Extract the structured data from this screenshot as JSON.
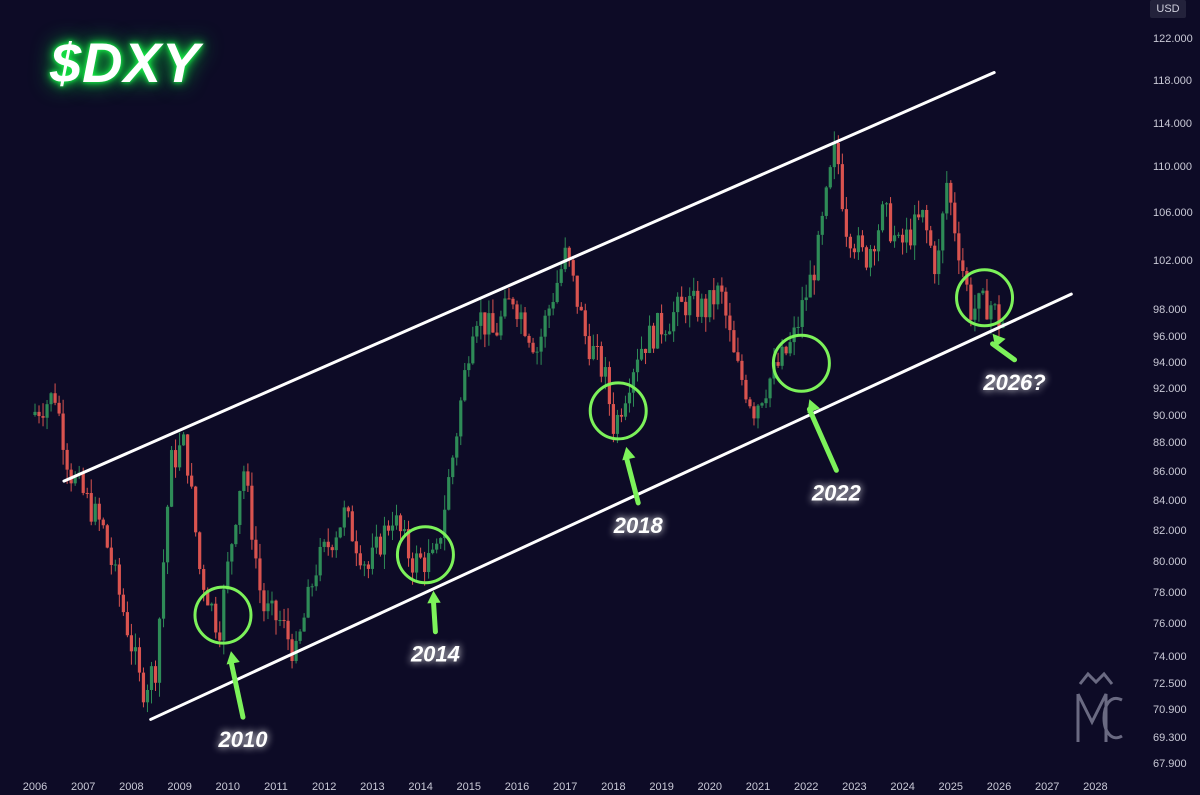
{
  "chart_data": {
    "type": "candlestick",
    "title": "$DXY",
    "currency": "USD",
    "y_ticks": [
      "122.000",
      "118.000",
      "114.000",
      "110.000",
      "106.000",
      "102.000",
      "98.000",
      "96.000",
      "94.000",
      "92.000",
      "90.000",
      "88.000",
      "86.000",
      "84.000",
      "82.000",
      "80.000",
      "78.000",
      "76.000",
      "74.000",
      "72.500",
      "70.900",
      "69.300",
      "67.900"
    ],
    "x_ticks": [
      "2006",
      "2007",
      "2008",
      "2009",
      "2010",
      "2011",
      "2012",
      "2013",
      "2014",
      "2015",
      "2016",
      "2017",
      "2018",
      "2019",
      "2020",
      "2021",
      "2022",
      "2023",
      "2024",
      "2025",
      "2026",
      "2027",
      "2028"
    ],
    "ylim": [
      67.9,
      122
    ],
    "scale": "log",
    "up_color": "#2e8b57",
    "down_color": "#d9534f",
    "trend_color": "#ffffff",
    "highlight_color": "#7cf25a",
    "channel": {
      "upper": {
        "from": {
          "year": 2006.6,
          "value": 85.3
        },
        "to": {
          "year": 2025.9,
          "value": 118.7
        }
      },
      "lower": {
        "from": {
          "year": 2008.4,
          "value": 70.3
        },
        "to": {
          "year": 2027.5,
          "value": 99.2
        }
      }
    },
    "annotations": [
      {
        "label": "2010",
        "year": 2009.9,
        "value": 76.5
      },
      {
        "label": "2014",
        "year": 2014.1,
        "value": 80.4
      },
      {
        "label": "2018",
        "year": 2018.1,
        "value": 90.3
      },
      {
        "label": "2022",
        "year": 2021.9,
        "value": 93.9
      },
      {
        "label": "2026?",
        "year": 2025.7,
        "value": 98.9
      }
    ],
    "series": [
      {
        "year": 2006.0,
        "value": 90.0
      },
      {
        "year": 2006.5,
        "value": 91.5
      },
      {
        "year": 2006.8,
        "value": 86.0
      },
      {
        "year": 2007.5,
        "value": 82.0
      },
      {
        "year": 2007.9,
        "value": 77.0
      },
      {
        "year": 2008.3,
        "value": 72.0
      },
      {
        "year": 2008.6,
        "value": 73.5
      },
      {
        "year": 2008.9,
        "value": 86.5
      },
      {
        "year": 2009.2,
        "value": 88.0
      },
      {
        "year": 2009.5,
        "value": 79.5
      },
      {
        "year": 2009.9,
        "value": 75.5
      },
      {
        "year": 2010.4,
        "value": 86.5
      },
      {
        "year": 2010.8,
        "value": 77.0
      },
      {
        "year": 2011.2,
        "value": 76.0
      },
      {
        "year": 2011.5,
        "value": 74.0
      },
      {
        "year": 2011.9,
        "value": 79.5
      },
      {
        "year": 2012.5,
        "value": 83.0
      },
      {
        "year": 2013.0,
        "value": 79.5
      },
      {
        "year": 2013.5,
        "value": 83.0
      },
      {
        "year": 2013.9,
        "value": 80.0
      },
      {
        "year": 2014.4,
        "value": 80.0
      },
      {
        "year": 2014.8,
        "value": 88.0
      },
      {
        "year": 2015.2,
        "value": 98.0
      },
      {
        "year": 2015.6,
        "value": 96.0
      },
      {
        "year": 2016.0,
        "value": 99.0
      },
      {
        "year": 2016.5,
        "value": 95.0
      },
      {
        "year": 2016.9,
        "value": 100.0
      },
      {
        "year": 2017.1,
        "value": 102.5
      },
      {
        "year": 2017.5,
        "value": 96.0
      },
      {
        "year": 2017.9,
        "value": 93.0
      },
      {
        "year": 2018.1,
        "value": 89.0
      },
      {
        "year": 2018.6,
        "value": 95.0
      },
      {
        "year": 2019.0,
        "value": 96.5
      },
      {
        "year": 2019.6,
        "value": 98.5
      },
      {
        "year": 2020.0,
        "value": 98.0
      },
      {
        "year": 2020.3,
        "value": 99.5
      },
      {
        "year": 2020.6,
        "value": 94.0
      },
      {
        "year": 2021.0,
        "value": 90.5
      },
      {
        "year": 2021.3,
        "value": 92.5
      },
      {
        "year": 2021.8,
        "value": 95.5
      },
      {
        "year": 2022.3,
        "value": 102.0
      },
      {
        "year": 2022.7,
        "value": 112.0
      },
      {
        "year": 2022.9,
        "value": 105.0
      },
      {
        "year": 2023.3,
        "value": 102.0
      },
      {
        "year": 2023.7,
        "value": 106.0
      },
      {
        "year": 2024.0,
        "value": 103.0
      },
      {
        "year": 2024.5,
        "value": 105.5
      },
      {
        "year": 2024.8,
        "value": 101.0
      },
      {
        "year": 2025.0,
        "value": 108.5
      },
      {
        "year": 2025.2,
        "value": 104.0
      },
      {
        "year": 2025.5,
        "value": 98.0
      },
      {
        "year": 2025.9,
        "value": 98.5
      },
      {
        "year": 2026.1,
        "value": 97.0
      }
    ]
  }
}
